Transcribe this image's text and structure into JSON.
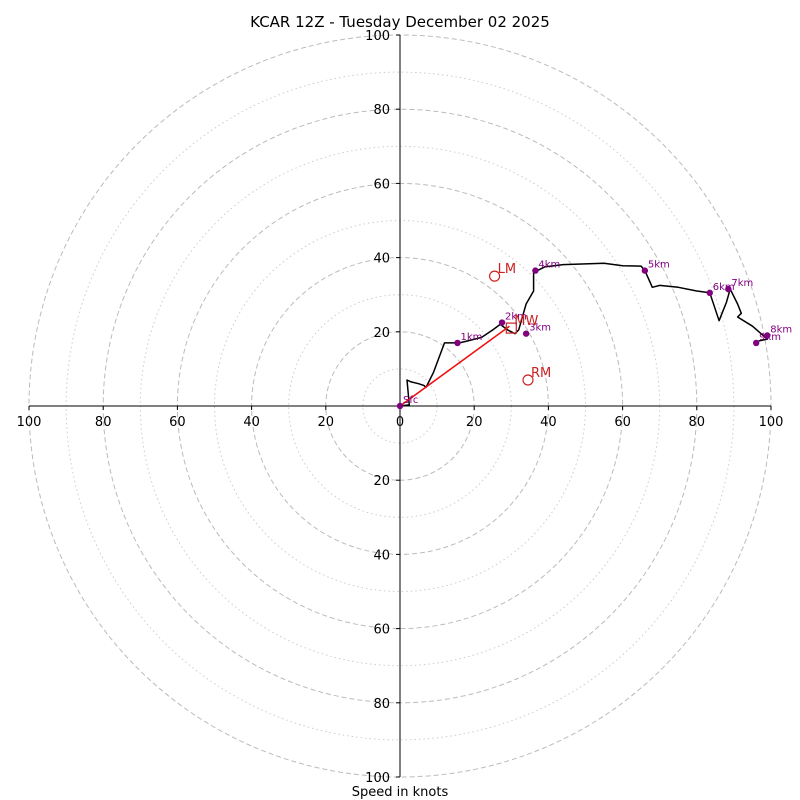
{
  "chart_data": {
    "type": "hodograph",
    "title": "KCAR 12Z - Tuesday December 02 2025",
    "xlabel": "Speed in knots",
    "rings": [
      10,
      20,
      30,
      40,
      50,
      60,
      70,
      80,
      90,
      100
    ],
    "xlim": [
      -100,
      100
    ],
    "ylim": [
      -100,
      100
    ],
    "x_tick_labels": [
      {
        "value": -100,
        "label": "100"
      },
      {
        "value": -80,
        "label": "80"
      },
      {
        "value": -60,
        "label": "60"
      },
      {
        "value": -40,
        "label": "40"
      },
      {
        "value": -20,
        "label": "20"
      },
      {
        "value": 0,
        "label": "0"
      },
      {
        "value": 20,
        "label": "20"
      },
      {
        "value": 40,
        "label": "40"
      },
      {
        "value": 60,
        "label": "60"
      },
      {
        "value": 80,
        "label": "80"
      },
      {
        "value": 100,
        "label": "100"
      }
    ],
    "y_tick_labels": [
      {
        "value": 100,
        "label": "100"
      },
      {
        "value": 80,
        "label": "80"
      },
      {
        "value": 60,
        "label": "60"
      },
      {
        "value": 40,
        "label": "40"
      },
      {
        "value": 20,
        "label": "20"
      },
      {
        "value": -20,
        "label": "20"
      },
      {
        "value": -40,
        "label": "40"
      },
      {
        "value": -60,
        "label": "60"
      },
      {
        "value": -80,
        "label": "80"
      },
      {
        "value": -100,
        "label": "100"
      }
    ],
    "trace": [
      [
        0,
        0
      ],
      [
        2.5,
        0.3
      ],
      [
        1.9,
        7
      ],
      [
        3,
        6.5
      ],
      [
        5,
        6
      ],
      [
        6.5,
        5.5
      ],
      [
        7,
        5
      ],
      [
        9,
        9
      ],
      [
        12,
        17
      ],
      [
        16,
        17
      ],
      [
        18,
        17.5
      ],
      [
        22,
        18.5
      ],
      [
        25,
        20.5
      ],
      [
        27,
        22
      ],
      [
        29,
        20.5
      ],
      [
        31,
        19.5
      ],
      [
        32,
        20.5
      ],
      [
        34,
        27.5
      ],
      [
        36,
        31
      ],
      [
        36,
        36
      ],
      [
        39,
        37.5
      ],
      [
        44,
        38.1
      ],
      [
        50,
        38.3
      ],
      [
        55,
        38.5
      ],
      [
        60,
        37.8
      ],
      [
        65,
        37.7
      ],
      [
        66,
        36.5
      ],
      [
        68,
        32
      ],
      [
        70,
        32.5
      ],
      [
        75,
        32
      ],
      [
        80,
        31
      ],
      [
        83.5,
        30.5
      ],
      [
        86,
        23
      ],
      [
        88,
        28
      ],
      [
        89,
        31.5
      ],
      [
        91,
        27.5
      ],
      [
        92,
        25
      ],
      [
        91,
        24
      ],
      [
        95,
        21.5
      ],
      [
        99,
        18
      ],
      [
        97,
        17.6
      ],
      [
        96,
        17.3
      ]
    ],
    "height_markers": [
      {
        "label": "Sfc",
        "u": 0,
        "v": 0
      },
      {
        "label": "1km",
        "u": 15.5,
        "v": 17
      },
      {
        "label": "2km",
        "u": 27.5,
        "v": 22.5
      },
      {
        "label": "3km",
        "u": 34,
        "v": 19.5
      },
      {
        "label": "4km",
        "u": 36.5,
        "v": 36.5
      },
      {
        "label": "5km",
        "u": 66,
        "v": 36.5
      },
      {
        "label": "6km",
        "u": 83.5,
        "v": 30.5
      },
      {
        "label": "7km",
        "u": 88.5,
        "v": 31.5
      },
      {
        "label": "8km",
        "u": 99,
        "v": 19
      },
      {
        "label": "9km",
        "u": 96,
        "v": 17
      }
    ],
    "storm_motions": [
      {
        "label": "LM",
        "u": 25.5,
        "v": 35
      },
      {
        "label": "MW",
        "u": 30,
        "v": 21
      },
      {
        "label": "RM",
        "u": 34.5,
        "v": 7
      }
    ],
    "shear_vector": {
      "from": [
        0,
        0
      ],
      "to": [
        29.5,
        21.5
      ]
    },
    "colors": {
      "trace": "#000000",
      "marker": "#800080",
      "storm_motion": "#cc2222",
      "shear": "#ee1111",
      "ring_major": "#bbbbbb",
      "ring_minor": "#cccccc"
    }
  }
}
